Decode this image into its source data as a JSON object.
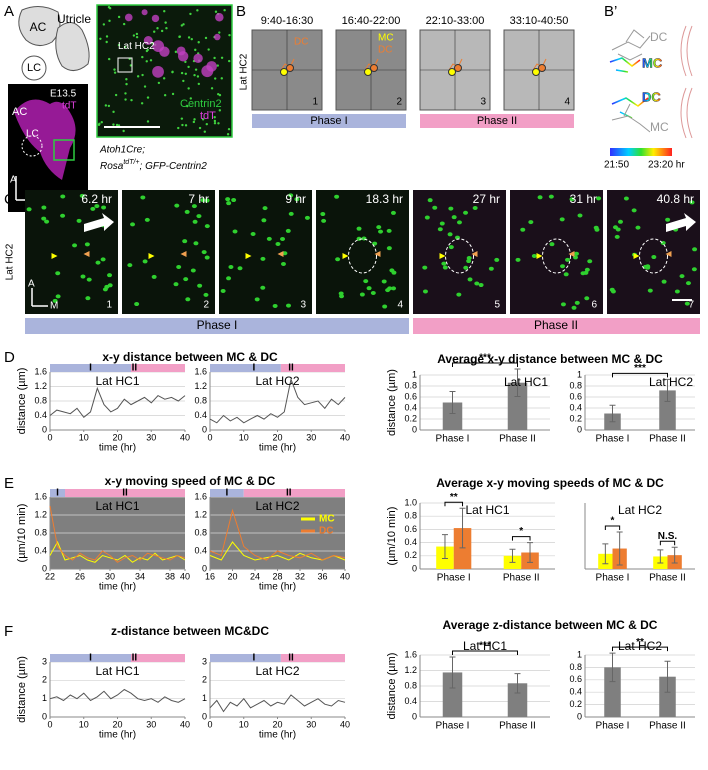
{
  "panels": {
    "A": {
      "label": "A",
      "schematic": {
        "ac": "AC",
        "lc": "LC",
        "utricle": "Utricle"
      },
      "image": {
        "stage": "E13.5",
        "marker": "tdT",
        "ac": "AC",
        "lc": "LC",
        "axis_a": "A",
        "axis_m": "M"
      },
      "zoom": {
        "region": "Lat HC2",
        "marker1": "Centrin2",
        "marker2": "tdT"
      },
      "genotype": {
        "line1": "Atoh1Cre;",
        "line2": "Rosa",
        "sup": "tdT/+",
        "line2_end": "; GFP-Centrin2"
      }
    },
    "B": {
      "label": "B",
      "row_label": "Lat HC2",
      "times": [
        "9:40-16:30",
        "16:40-22:00",
        "22:10-33:00",
        "33:10-40:50"
      ],
      "numbers": [
        "1",
        "2",
        "3",
        "4"
      ],
      "frame1_dc": "DC",
      "frame2_mc": "MC",
      "frame2_dc": "DC",
      "phase1": "Phase I",
      "phase2": "Phase II"
    },
    "B_prime": {
      "label": "B’",
      "top_dc": "DC",
      "top_mc": "MC",
      "bottom_dc": "DC",
      "bottom_mc": "MC",
      "scale_start": "21:50",
      "scale_end": "23:20 hr"
    },
    "C": {
      "label": "C",
      "row_label": "Lat HC2",
      "times": [
        "6.2 hr",
        "7 hr",
        "9 hr",
        "18.3 hr",
        "27 hr",
        "31 hr",
        "40.8 hr"
      ],
      "numbers": [
        "1",
        "2",
        "3",
        "4",
        "5",
        "6",
        "7"
      ],
      "axis_a": "A",
      "axis_m": "M",
      "phase1": "Phase I",
      "phase2": "Phase II"
    },
    "D": {
      "label": "D",
      "title": "x-y distance between MC & DC",
      "bar_title": "Average x-y distance between MC & DC"
    },
    "E": {
      "label": "E",
      "title": "x-y moving speed of MC & DC",
      "bar_title": "Average x-y moving speeds of MC & DC"
    },
    "F": {
      "label": "F",
      "title": "z-distance between MC&DC",
      "bar_title": "Average z-distance between MC & DC"
    }
  },
  "chart_data": [
    {
      "type": "line",
      "title": "Lat HC1",
      "xlabel": "time (hr)",
      "ylabel": "distance (µm)",
      "x": [
        0,
        2,
        4,
        6,
        8,
        10,
        12,
        14,
        16,
        18,
        20,
        22,
        24,
        26,
        28,
        30,
        32,
        34,
        36,
        38,
        40
      ],
      "series": [
        {
          "color": "#555555",
          "values": [
            0.4,
            0.55,
            0.5,
            0.45,
            0.6,
            0.35,
            0.5,
            1.15,
            0.7,
            0.5,
            0.6,
            0.85,
            0.7,
            0.8,
            0.9,
            0.75,
            0.95,
            0.85,
            0.9,
            0.8,
            0.95
          ]
        }
      ],
      "xlim": [
        0,
        40
      ],
      "ylim": [
        0,
        1.6
      ],
      "xticks": [
        0,
        10,
        20,
        30,
        40
      ],
      "yticks": [
        0,
        0.4,
        0.8,
        1.2,
        1.6
      ],
      "grid": true,
      "phase_split": 24,
      "phase_marks": [
        {
          "x": 12,
          "label": "I"
        },
        {
          "x": 25,
          "label": "II"
        }
      ]
    },
    {
      "type": "line",
      "title": "Lat HC2",
      "xlabel": "time (hr)",
      "x": [
        0,
        2,
        4,
        6,
        8,
        10,
        12,
        14,
        16,
        18,
        20,
        22,
        24,
        26,
        28,
        30,
        32,
        34,
        36,
        38,
        40
      ],
      "series": [
        {
          "color": "#555555",
          "values": [
            0.3,
            0.2,
            0.4,
            0.25,
            0.35,
            0.2,
            0.3,
            0.4,
            0.3,
            0.45,
            0.35,
            0.5,
            1.4,
            0.9,
            0.7,
            0.75,
            0.8,
            0.6,
            0.85,
            0.7,
            0.9
          ]
        }
      ],
      "xlim": [
        0,
        40
      ],
      "ylim": [
        0,
        1.6
      ],
      "xticks": [
        0,
        10,
        20,
        30,
        40
      ],
      "yticks": [
        0,
        0.4,
        0.8,
        1.2,
        1.6
      ],
      "grid": true,
      "phase_split": 21,
      "phase_marks": [
        {
          "x": 13,
          "label": "I"
        },
        {
          "x": 24,
          "label": "II"
        }
      ]
    },
    {
      "type": "bar",
      "title": "Lat HC1",
      "title_position": "right",
      "ylabel": "distance (µm)",
      "categories": [
        "Phase I",
        "Phase II"
      ],
      "values": [
        0.5,
        0.86
      ],
      "errors": [
        0.2,
        0.25
      ],
      "color": "#7f7f7f",
      "ylim": [
        0,
        1
      ],
      "yticks": [
        0,
        0.2,
        0.4,
        0.6,
        0.8,
        {
          "value": 1,
          "label": "1"
        }
      ],
      "grid": true,
      "significance": [
        {
          "label": "***",
          "from": 0,
          "to": 1
        }
      ]
    },
    {
      "type": "bar",
      "title": "Lat HC2",
      "title_position": "right",
      "categories": [
        "Phase I",
        "Phase II"
      ],
      "values": [
        0.3,
        0.72
      ],
      "errors": [
        0.15,
        0.2
      ],
      "color": "#7f7f7f",
      "ylim": [
        0,
        1
      ],
      "yticks": [
        0,
        0.2,
        0.4,
        0.6,
        0.8,
        1
      ],
      "grid": true,
      "significance": [
        {
          "label": "***",
          "from": 0,
          "to": 1
        }
      ]
    },
    {
      "type": "line",
      "title": "Lat HC1",
      "xlabel": "time (hr)",
      "ylabel": "(µm/10 min)",
      "x": [
        22,
        23,
        24,
        25,
        26,
        27,
        28,
        29,
        30,
        31,
        32,
        33,
        34,
        35,
        36,
        37,
        38,
        39,
        40
      ],
      "series": [
        {
          "color": "#ffff00",
          "values": [
            0.3,
            0.6,
            0.2,
            0.25,
            0.3,
            0.2,
            0.15,
            0.3,
            0.25,
            0.2,
            0.3,
            0.15,
            0.25,
            0.2,
            0.35,
            0.2,
            0.25,
            0.3,
            0.2
          ]
        },
        {
          "color": "#ed7d31",
          "values": [
            1.4,
            0.5,
            0.3,
            0.2,
            0.35,
            0.25,
            0.2,
            0.4,
            0.3,
            0.15,
            0.25,
            0.3,
            0.2,
            0.35,
            0.3,
            0.25,
            0.2,
            0.3,
            0.25
          ]
        }
      ],
      "xlim": [
        22,
        40
      ],
      "ylim": [
        0,
        1.6
      ],
      "xticks": [
        22,
        26,
        30,
        34,
        38,
        40
      ],
      "yticks": [
        0,
        0.4,
        0.8,
        1.2,
        1.6
      ],
      "grid": true,
      "background": "#7f7f7f",
      "grid_color": "#d9d9d9",
      "phase_split": 24,
      "phase_marks": [
        {
          "x": 23,
          "label": "I"
        },
        {
          "x": 32,
          "label": "II"
        }
      ]
    },
    {
      "type": "line",
      "title": "Lat HC2",
      "xlabel": "time (hr)",
      "x": [
        16,
        18,
        20,
        22,
        24,
        26,
        28,
        30,
        32,
        34,
        36,
        38,
        40
      ],
      "series": [
        {
          "name": "MC",
          "color": "#ffff00",
          "values": [
            0.3,
            0.2,
            0.6,
            0.3,
            0.2,
            0.25,
            0.3,
            0.2,
            0.35,
            0.25,
            0.2,
            0.3,
            0.2
          ]
        },
        {
          "name": "DC",
          "color": "#ed7d31",
          "values": [
            0.4,
            0.3,
            1.3,
            0.5,
            0.3,
            0.2,
            0.4,
            0.3,
            0.25,
            0.35,
            0.2,
            0.3,
            0.25
          ]
        }
      ],
      "xlim": [
        16,
        40
      ],
      "ylim": [
        0,
        1.6
      ],
      "xticks": [
        16,
        20,
        24,
        28,
        32,
        36,
        40
      ],
      "yticks": [
        0,
        0.4,
        0.8,
        1.2,
        1.6
      ],
      "grid": true,
      "background": "#7f7f7f",
      "grid_color": "#d9d9d9",
      "legend": "upper right",
      "phase_split": 22,
      "phase_marks": [
        {
          "x": 19,
          "label": "I"
        },
        {
          "x": 30,
          "label": "II"
        }
      ]
    },
    {
      "type": "bar",
      "title": "Lat HC1",
      "title_position": "inside",
      "ylabel": "(µm/10 min)",
      "categories": [
        "Phase I",
        "Phase II"
      ],
      "series": [
        {
          "color": "#ffff00",
          "values": [
            0.34,
            0.2
          ],
          "errors": [
            0.18,
            0.1
          ]
        },
        {
          "color": "#ed7d31",
          "values": [
            0.62,
            0.25
          ],
          "errors": [
            0.3,
            0.15
          ]
        }
      ],
      "ylim": [
        0,
        1
      ],
      "yticks": [
        0,
        0.2,
        0.4,
        0.6,
        0.8,
        {
          "value": 1,
          "label": "1.0"
        }
      ],
      "grid": true,
      "significance": [
        {
          "label": "**",
          "category": 0
        },
        {
          "label": "*",
          "category": 1
        }
      ]
    },
    {
      "type": "bar",
      "title": "Lat HC2",
      "title_position": "inside",
      "categories": [
        "Phase I",
        "Phase II"
      ],
      "series": [
        {
          "color": "#ffff00",
          "values": [
            0.23,
            0.19
          ],
          "errors": [
            0.15,
            0.1
          ]
        },
        {
          "color": "#ed7d31",
          "values": [
            0.31,
            0.21
          ],
          "errors": [
            0.25,
            0.12
          ]
        }
      ],
      "ylim": [
        0,
        1
      ],
      "yticks": [],
      "grid": false,
      "significance": [
        {
          "label": "*",
          "category": 0
        },
        {
          "label": "N.S.",
          "category": 1
        }
      ]
    },
    {
      "type": "line",
      "title": "Lat HC1",
      "xlabel": "time (hr)",
      "ylabel": "distance (µm)",
      "x": [
        0,
        2,
        4,
        6,
        8,
        10,
        12,
        14,
        16,
        18,
        20,
        22,
        24,
        26,
        28,
        30,
        32,
        34,
        36,
        38,
        40
      ],
      "series": [
        {
          "color": "#555555",
          "values": [
            1,
            1.1,
            0.9,
            1.2,
            1,
            1.3,
            0.9,
            1.1,
            1.4,
            1,
            1.2,
            1.5,
            1.3,
            1,
            0.9,
            1,
            0.8,
            1.1,
            0.9,
            0.8,
            1
          ]
        }
      ],
      "xlim": [
        0,
        40
      ],
      "ylim": [
        0,
        3
      ],
      "xticks": [
        0,
        10,
        20,
        30,
        40
      ],
      "yticks": [
        0,
        1,
        2,
        3
      ],
      "grid": true,
      "phase_split": 24,
      "phase_marks": [
        {
          "x": 12,
          "label": "I"
        },
        {
          "x": 25,
          "label": "II"
        }
      ]
    },
    {
      "type": "line",
      "title": "Lat HC2",
      "xlabel": "time (hr)",
      "x": [
        0,
        2,
        4,
        6,
        8,
        10,
        12,
        14,
        16,
        18,
        20,
        22,
        24,
        26,
        28,
        30,
        32,
        34,
        36,
        38,
        40
      ],
      "series": [
        {
          "color": "#555555",
          "values": [
            0.5,
            0.9,
            0.3,
            0.8,
            0.6,
            1,
            0.5,
            0.7,
            0.9,
            0.6,
            0.8,
            0.7,
            1.2,
            0.9,
            0.6,
            0.8,
            1,
            0.7,
            0.6,
            0.9,
            0.8
          ]
        }
      ],
      "xlim": [
        0,
        40
      ],
      "ylim": [
        0,
        3
      ],
      "xticks": [
        0,
        10,
        20,
        30,
        40
      ],
      "yticks": [
        0,
        1,
        2,
        3
      ],
      "grid": true,
      "phase_split": 21,
      "phase_marks": [
        {
          "x": 13,
          "label": "I"
        },
        {
          "x": 24,
          "label": "II"
        }
      ]
    },
    {
      "type": "bar",
      "title": "Lat HC1",
      "title_position": "top",
      "ylabel": "distance (µm)",
      "categories": [
        "Phase I",
        "Phase II"
      ],
      "values": [
        1.15,
        0.87
      ],
      "errors": [
        0.4,
        0.25
      ],
      "color": "#7f7f7f",
      "ylim": [
        0,
        1.6
      ],
      "yticks": [
        0,
        0.4,
        0.8,
        1.2,
        1.6
      ],
      "grid": true,
      "significance": [
        {
          "label": "***",
          "from": 0,
          "to": 1
        }
      ]
    },
    {
      "type": "bar",
      "title": "Lat HC2",
      "title_position": "top",
      "categories": [
        "Phase I",
        "Phase II"
      ],
      "values": [
        0.8,
        0.65
      ],
      "errors": [
        0.23,
        0.25
      ],
      "color": "#7f7f7f",
      "ylim": [
        0,
        1
      ],
      "yticks": [
        0,
        0.2,
        0.4,
        0.6,
        0.8,
        1
      ],
      "grid": true,
      "significance": [
        {
          "label": "**",
          "from": 0,
          "to": 1
        }
      ]
    }
  ]
}
